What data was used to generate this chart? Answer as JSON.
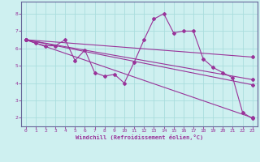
{
  "xlabel": "Windchill (Refroidissement éolien,°C)",
  "background_color": "#cef0f0",
  "grid_color": "#aadddd",
  "line_color": "#993399",
  "xlim": [
    -0.5,
    23.5
  ],
  "ylim": [
    1.5,
    8.7
  ],
  "xticks": [
    0,
    1,
    2,
    3,
    4,
    5,
    6,
    7,
    8,
    9,
    10,
    11,
    12,
    13,
    14,
    15,
    16,
    17,
    18,
    19,
    20,
    21,
    22,
    23
  ],
  "yticks": [
    2,
    3,
    4,
    5,
    6,
    7,
    8
  ],
  "lines": [
    {
      "x": [
        0,
        1,
        2,
        3,
        4,
        5,
        6,
        7,
        8,
        9,
        10,
        11,
        12,
        13,
        14,
        15,
        16,
        17,
        18,
        19,
        20,
        21,
        22,
        23
      ],
      "y": [
        6.5,
        6.3,
        6.15,
        6.15,
        6.5,
        5.3,
        5.9,
        4.6,
        4.4,
        4.5,
        4.0,
        5.2,
        6.5,
        7.7,
        8.0,
        6.9,
        7.0,
        7.0,
        5.4,
        4.9,
        4.6,
        4.3,
        2.3,
        1.95
      ]
    },
    {
      "x": [
        0,
        23
      ],
      "y": [
        6.5,
        5.5
      ]
    },
    {
      "x": [
        0,
        23
      ],
      "y": [
        6.5,
        4.2
      ]
    },
    {
      "x": [
        0,
        23
      ],
      "y": [
        6.5,
        3.9
      ]
    },
    {
      "x": [
        0,
        23
      ],
      "y": [
        6.5,
        2.0
      ]
    }
  ]
}
